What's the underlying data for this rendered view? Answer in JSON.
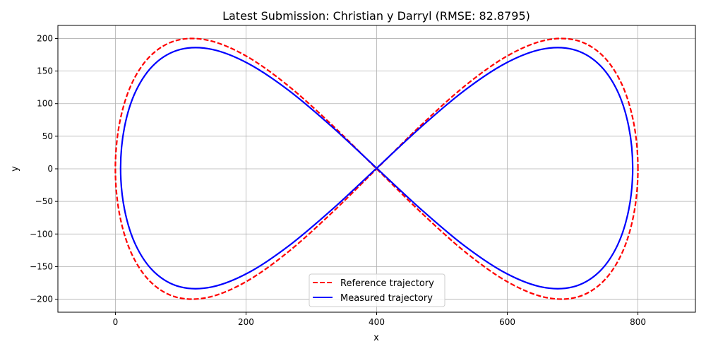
{
  "chart_data": {
    "type": "line",
    "title": "Latest Submission: Christian y Darryl (RMSE: 82.8795)",
    "xlabel": "x",
    "ylabel": "y",
    "xlim": [
      -88,
      888
    ],
    "ylim": [
      -220,
      220
    ],
    "xticks": [
      0,
      200,
      400,
      600,
      800
    ],
    "xtick_labels": [
      "0",
      "200",
      "400",
      "600",
      "800"
    ],
    "yticks": [
      200,
      150,
      100,
      50,
      0,
      -50,
      -100,
      -150,
      -200
    ],
    "ytick_labels": [
      "200",
      "150",
      "100",
      "50",
      "0",
      "−50",
      "−100",
      "−150",
      "−200"
    ],
    "grid": true,
    "legend_position": "lower-center",
    "series": [
      {
        "name": "Reference trajectory",
        "color": "#ff0000",
        "style": "dashed",
        "x": [
          800,
          793.9,
          775.9,
          746.4,
          706.4,
          657.1,
          600,
          536.8,
          469.5,
          400,
          330.5,
          263.2,
          200,
          142.9,
          93.6,
          53.6,
          24.1,
          6.1,
          0,
          6.1,
          24.1,
          53.6,
          93.6,
          142.9,
          200,
          263.2,
          330.5,
          400,
          469.5,
          536.8,
          600,
          657.1,
          706.4,
          746.4,
          775.9,
          793.9
        ],
        "y": [
          0,
          68.4,
          128.6,
          173.2,
          197.0,
          197.0,
          173.2,
          128.6,
          68.4,
          0,
          -68.4,
          -128.6,
          -173.2,
          -197.0,
          -197.0,
          -173.2,
          -128.6,
          -68.4,
          0,
          68.4,
          128.6,
          173.2,
          197.0,
          197.0,
          173.2,
          128.6,
          68.4,
          0,
          -68.4,
          -128.6,
          -173.2,
          -197.0,
          -197.0,
          -173.2,
          -128.6,
          -68.4
        ]
      },
      {
        "name": "Measured trajectory",
        "color": "#0000ff",
        "style": "solid",
        "x": [
          792,
          786.0,
          768.4,
          739.5,
          700.3,
          652.0,
          596,
          534.1,
          468.1,
          400,
          331.9,
          265.9,
          204,
          148.0,
          99.7,
          60.5,
          31.6,
          14.0,
          8,
          14.0,
          31.6,
          60.5,
          99.7,
          148.0,
          204,
          265.9,
          331.9,
          400,
          468.1,
          534.1,
          596,
          652.0,
          700.3,
          739.5,
          768.4,
          786.0
        ],
        "y": [
          1,
          64.3,
          119.9,
          161.2,
          183.2,
          183.2,
          161.2,
          119.9,
          64.3,
          1,
          -62.3,
          -117.9,
          -159.2,
          -181.2,
          -181.2,
          -159.2,
          -117.9,
          -62.3,
          1,
          64.3,
          119.9,
          161.2,
          183.2,
          183.2,
          161.2,
          119.9,
          64.3,
          1,
          -62.3,
          -117.9,
          -159.2,
          -181.2,
          -181.2,
          -159.2,
          -117.9,
          -62.3
        ]
      }
    ]
  }
}
